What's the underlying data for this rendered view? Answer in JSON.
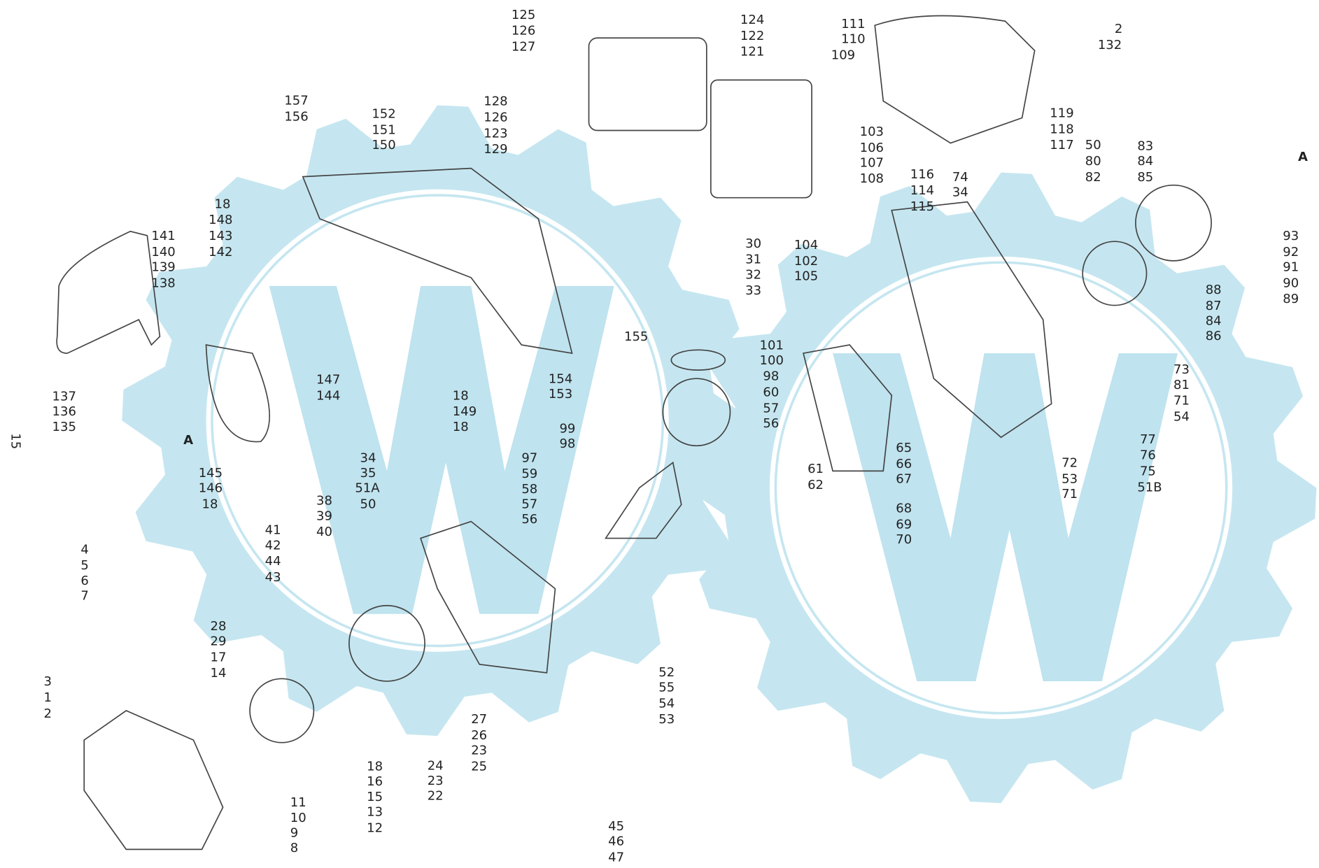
{
  "page_number": "15",
  "section_markers": [
    "A",
    "A"
  ],
  "labels": [
    "125",
    "126",
    "127",
    "124",
    "122",
    "121",
    "111",
    "110",
    "109",
    "2",
    "132",
    "128",
    "126",
    "123",
    "129",
    "152",
    "151",
    "150",
    "157",
    "156",
    "103",
    "106",
    "107",
    "108",
    "119",
    "118",
    "117",
    "50",
    "80",
    "82",
    "83",
    "84",
    "85",
    "116",
    "74",
    "34",
    "114",
    "115",
    "18",
    "148",
    "143",
    "142",
    "141",
    "140",
    "139",
    "138",
    "30",
    "31",
    "32",
    "33",
    "104",
    "102",
    "105",
    "93",
    "92",
    "91",
    "90",
    "89",
    "88",
    "87",
    "84",
    "86",
    "155",
    "101",
    "100",
    "98",
    "60",
    "57",
    "56",
    "73",
    "81",
    "71",
    "54",
    "147",
    "144",
    "154",
    "153",
    "18",
    "149",
    "18",
    "137",
    "136",
    "135",
    "99",
    "98",
    "77",
    "76",
    "75",
    "51B",
    "65",
    "66",
    "67",
    "72",
    "53",
    "71",
    "61",
    "62",
    "68",
    "69",
    "70",
    "145",
    "146",
    "18",
    "34",
    "35",
    "51A",
    "50",
    "97",
    "59",
    "58",
    "57",
    "56",
    "38",
    "39",
    "40",
    "41",
    "42",
    "44",
    "43",
    "4",
    "5",
    "6",
    "7",
    "28",
    "29",
    "17",
    "14",
    "52",
    "55",
    "54",
    "53",
    "27",
    "26",
    "23",
    "25",
    "3",
    "1",
    "2",
    "18",
    "16",
    "15",
    "13",
    "12",
    "24",
    "23",
    "22",
    "11",
    "10",
    "9",
    "8",
    "45",
    "46",
    "47"
  ]
}
